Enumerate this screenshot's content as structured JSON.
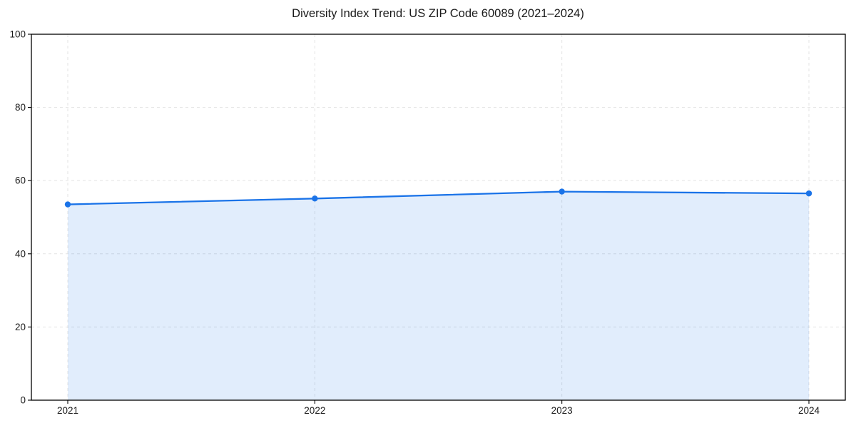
{
  "figure": {
    "background": "#ffffff"
  },
  "chart_data": {
    "type": "area",
    "title": "Diversity Index Trend: US ZIP Code 60089 (2021–2024)",
    "xlabel": "",
    "ylabel": "",
    "categories": [
      "2021",
      "2022",
      "2023",
      "2024"
    ],
    "series": [
      {
        "name": "Diversity Index",
        "values": [
          53.5,
          55.1,
          57.0,
          56.5
        ]
      }
    ],
    "ylim": [
      0,
      100
    ],
    "yticks": [
      0,
      20,
      40,
      60,
      80,
      100
    ],
    "xticks": [
      "2021",
      "2022",
      "2023",
      "2024"
    ],
    "grid": true,
    "grid_style": "dashed",
    "legend": false,
    "marker": "circle",
    "colors": {
      "line": "#1a73e8",
      "marker": "#1a73e8",
      "fill": "rgba(26,115,232,0.13)",
      "grid": "#e3e3e3",
      "axis": "#000000",
      "text": "#1a1a1a",
      "background": "#ffffff"
    }
  }
}
